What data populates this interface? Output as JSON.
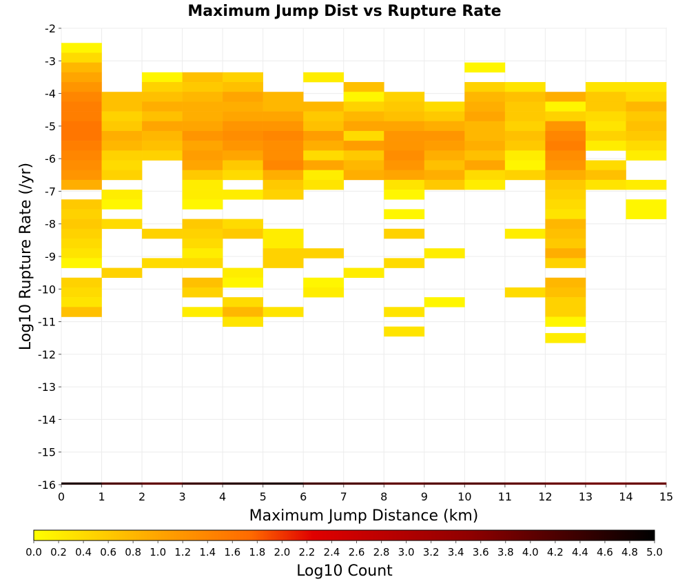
{
  "chart_data": {
    "type": "heatmap",
    "title": "Maximum Jump Dist vs Rupture Rate",
    "xlabel": "Maximum Jump Distance (km)",
    "ylabel": "Log10 Rupture Rate (/yr)",
    "colorbar_label": "Log10 Count",
    "xlim": [
      0,
      15
    ],
    "ylim": [
      -16,
      -2
    ],
    "x_ticks": [
      "0",
      "1",
      "2",
      "3",
      "4",
      "5",
      "6",
      "7",
      "8",
      "9",
      "10",
      "11",
      "12",
      "13",
      "14",
      "15"
    ],
    "y_ticks": [
      "-2",
      "-3",
      "-4",
      "-5",
      "-6",
      "-7",
      "-8",
      "-9",
      "-10",
      "-11",
      "-12",
      "-13",
      "-14",
      "-15",
      "-16"
    ],
    "colorbar_range": [
      0,
      5
    ],
    "colorbar_ticks": [
      "0.0",
      "0.2",
      "0.4",
      "0.6",
      "0.8",
      "1.0",
      "1.2",
      "1.4",
      "1.6",
      "1.8",
      "2.0",
      "2.2",
      "2.4",
      "2.6",
      "2.8",
      "3.0",
      "3.2",
      "3.4",
      "3.6",
      "3.8",
      "4.0",
      "4.2",
      "4.4",
      "4.6",
      "4.8",
      "5.0"
    ],
    "colormap": [
      "#ffff00",
      "#ffa500",
      "#ff6a00",
      "#e00000",
      "#900000",
      "#000000"
    ],
    "grid": true,
    "legend": "colorbar-bottom",
    "bin_width_x": 1,
    "bin_height_y": 0.3,
    "columns": [
      {
        "x": 0.5,
        "cells": [
          [
            -2.6,
            0.1
          ],
          [
            -2.9,
            0.4
          ],
          [
            -3.2,
            0.8
          ],
          [
            -3.5,
            1.0
          ],
          [
            -3.8,
            1.2
          ],
          [
            -4.1,
            1.4
          ],
          [
            -4.4,
            1.5
          ],
          [
            -4.7,
            1.5
          ],
          [
            -5.0,
            1.6
          ],
          [
            -5.3,
            1.6
          ],
          [
            -5.6,
            1.5
          ],
          [
            -5.9,
            1.4
          ],
          [
            -6.2,
            1.3
          ],
          [
            -6.5,
            1.2
          ],
          [
            -6.8,
            0.9
          ],
          [
            -7.4,
            0.6
          ],
          [
            -7.7,
            0.5
          ],
          [
            -8.0,
            0.6
          ],
          [
            -8.3,
            0.5
          ],
          [
            -8.6,
            0.4
          ],
          [
            -8.9,
            0.3
          ],
          [
            -9.2,
            0.1
          ],
          [
            -9.8,
            0.5
          ],
          [
            -10.1,
            0.4
          ],
          [
            -10.4,
            0.3
          ],
          [
            -10.7,
            0.7
          ]
        ]
      },
      {
        "x": 1.5,
        "cells": [
          [
            -4.1,
            0.7
          ],
          [
            -4.4,
            0.7
          ],
          [
            -4.7,
            0.5
          ],
          [
            -5.0,
            0.6
          ],
          [
            -5.3,
            0.9
          ],
          [
            -5.6,
            0.8
          ],
          [
            -5.9,
            0.5
          ],
          [
            -6.2,
            0.4
          ],
          [
            -6.5,
            0.5
          ],
          [
            -7.1,
            0.2
          ],
          [
            -7.4,
            0.1
          ],
          [
            -8.0,
            0.4
          ],
          [
            -9.5,
            0.5
          ]
        ]
      },
      {
        "x": 2.5,
        "cells": [
          [
            -3.5,
            0.1
          ],
          [
            -3.8,
            0.5
          ],
          [
            -4.1,
            0.7
          ],
          [
            -4.4,
            0.9
          ],
          [
            -4.7,
            0.7
          ],
          [
            -5.0,
            1.0
          ],
          [
            -5.3,
            0.8
          ],
          [
            -5.6,
            0.7
          ],
          [
            -5.9,
            0.5
          ],
          [
            -8.3,
            0.5
          ],
          [
            -9.2,
            0.4
          ]
        ]
      },
      {
        "x": 3.5,
        "cells": [
          [
            -3.5,
            0.7
          ],
          [
            -3.8,
            0.6
          ],
          [
            -4.1,
            0.8
          ],
          [
            -4.4,
            0.9
          ],
          [
            -4.7,
            0.9
          ],
          [
            -5.0,
            1.0
          ],
          [
            -5.3,
            1.2
          ],
          [
            -5.6,
            1.0
          ],
          [
            -5.9,
            1.1
          ],
          [
            -6.2,
            1.0
          ],
          [
            -6.5,
            0.6
          ],
          [
            -6.8,
            0.2
          ],
          [
            -7.1,
            0.2
          ],
          [
            -7.4,
            0.1
          ],
          [
            -8.0,
            0.6
          ],
          [
            -8.3,
            0.5
          ],
          [
            -8.6,
            0.4
          ],
          [
            -8.9,
            0.2
          ],
          [
            -9.2,
            0.4
          ],
          [
            -9.8,
            0.7
          ],
          [
            -10.1,
            0.5
          ],
          [
            -10.7,
            0.2
          ]
        ]
      },
      {
        "x": 4.5,
        "cells": [
          [
            -3.5,
            0.5
          ],
          [
            -3.8,
            0.7
          ],
          [
            -4.1,
            1.0
          ],
          [
            -4.4,
            0.9
          ],
          [
            -4.7,
            1.0
          ],
          [
            -5.0,
            1.2
          ],
          [
            -5.3,
            1.3
          ],
          [
            -5.6,
            1.2
          ],
          [
            -5.9,
            1.0
          ],
          [
            -6.2,
            0.6
          ],
          [
            -6.5,
            0.4
          ],
          [
            -7.1,
            0.2
          ],
          [
            -8.0,
            0.4
          ],
          [
            -8.3,
            0.6
          ],
          [
            -9.5,
            0.2
          ],
          [
            -9.8,
            0.1
          ],
          [
            -10.4,
            0.4
          ],
          [
            -10.7,
            0.8
          ],
          [
            -11.0,
            0.3
          ]
        ]
      },
      {
        "x": 5.5,
        "cells": [
          [
            -4.1,
            0.8
          ],
          [
            -4.4,
            0.8
          ],
          [
            -4.7,
            1.0
          ],
          [
            -5.0,
            1.2
          ],
          [
            -5.3,
            1.4
          ],
          [
            -5.6,
            1.3
          ],
          [
            -5.9,
            1.3
          ],
          [
            -6.2,
            1.4
          ],
          [
            -6.5,
            0.9
          ],
          [
            -6.8,
            0.6
          ],
          [
            -7.1,
            0.5
          ],
          [
            -8.3,
            0.2
          ],
          [
            -8.6,
            0.2
          ],
          [
            -8.9,
            0.5
          ],
          [
            -9.2,
            0.5
          ],
          [
            -10.7,
            0.3
          ]
        ]
      },
      {
        "x": 6.5,
        "cells": [
          [
            -3.5,
            0.2
          ],
          [
            -4.4,
            0.8
          ],
          [
            -4.7,
            0.6
          ],
          [
            -5.0,
            0.7
          ],
          [
            -5.3,
            1.1
          ],
          [
            -5.6,
            0.9
          ],
          [
            -5.9,
            0.4
          ],
          [
            -6.2,
            1.0
          ],
          [
            -6.5,
            0.2
          ],
          [
            -6.8,
            0.3
          ],
          [
            -8.9,
            0.5
          ],
          [
            -9.8,
            0.1
          ],
          [
            -10.1,
            0.2
          ]
        ]
      },
      {
        "x": 7.5,
        "cells": [
          [
            -3.8,
            0.7
          ],
          [
            -4.1,
            0.1
          ],
          [
            -4.4,
            0.5
          ],
          [
            -4.7,
            0.8
          ],
          [
            -5.0,
            1.0
          ],
          [
            -5.3,
            0.4
          ],
          [
            -5.6,
            1.1
          ],
          [
            -5.9,
            0.6
          ],
          [
            -6.2,
            0.8
          ],
          [
            -6.5,
            0.9
          ],
          [
            -9.5,
            0.2
          ]
        ]
      },
      {
        "x": 8.5,
        "cells": [
          [
            -4.1,
            0.5
          ],
          [
            -4.4,
            0.6
          ],
          [
            -4.7,
            0.7
          ],
          [
            -5.0,
            1.0
          ],
          [
            -5.3,
            1.2
          ],
          [
            -5.6,
            1.2
          ],
          [
            -5.9,
            1.3
          ],
          [
            -6.2,
            1.2
          ],
          [
            -6.5,
            1.0
          ],
          [
            -6.8,
            0.3
          ],
          [
            -7.1,
            0.1
          ],
          [
            -7.7,
            0.1
          ],
          [
            -8.3,
            0.5
          ],
          [
            -9.2,
            0.4
          ],
          [
            -10.7,
            0.3
          ],
          [
            -11.3,
            0.3
          ]
        ]
      },
      {
        "x": 9.5,
        "cells": [
          [
            -4.4,
            0.4
          ],
          [
            -4.7,
            0.6
          ],
          [
            -5.0,
            0.9
          ],
          [
            -5.3,
            1.2
          ],
          [
            -5.6,
            1.1
          ],
          [
            -5.9,
            0.9
          ],
          [
            -6.2,
            0.7
          ],
          [
            -6.5,
            0.9
          ],
          [
            -6.8,
            0.6
          ],
          [
            -8.9,
            0.2
          ],
          [
            -10.4,
            0.1
          ]
        ]
      },
      {
        "x": 10.5,
        "cells": [
          [
            -3.2,
            0.1
          ],
          [
            -3.8,
            0.5
          ],
          [
            -4.1,
            0.8
          ],
          [
            -4.4,
            0.9
          ],
          [
            -4.7,
            1.0
          ],
          [
            -5.0,
            0.8
          ],
          [
            -5.3,
            0.8
          ],
          [
            -5.6,
            0.9
          ],
          [
            -5.9,
            0.7
          ],
          [
            -6.2,
            1.0
          ],
          [
            -6.5,
            0.4
          ],
          [
            -6.8,
            0.2
          ]
        ]
      },
      {
        "x": 11.5,
        "cells": [
          [
            -3.8,
            0.3
          ],
          [
            -4.1,
            0.7
          ],
          [
            -4.4,
            0.6
          ],
          [
            -4.7,
            0.6
          ],
          [
            -5.0,
            0.5
          ],
          [
            -5.3,
            0.7
          ],
          [
            -5.6,
            0.6
          ],
          [
            -5.9,
            0.2
          ],
          [
            -6.2,
            0.1
          ],
          [
            -6.5,
            0.5
          ],
          [
            -8.3,
            0.2
          ],
          [
            -10.1,
            0.4
          ]
        ]
      },
      {
        "x": 12.5,
        "cells": [
          [
            -4.1,
            0.9
          ],
          [
            -4.4,
            0.1
          ],
          [
            -4.7,
            0.5
          ],
          [
            -5.0,
            1.2
          ],
          [
            -5.3,
            1.4
          ],
          [
            -5.6,
            1.5
          ],
          [
            -5.9,
            1.3
          ],
          [
            -6.2,
            1.2
          ],
          [
            -6.5,
            0.9
          ],
          [
            -6.8,
            0.6
          ],
          [
            -7.1,
            0.5
          ],
          [
            -7.4,
            0.4
          ],
          [
            -7.7,
            0.3
          ],
          [
            -8.0,
            0.8
          ],
          [
            -8.3,
            0.7
          ],
          [
            -8.6,
            0.6
          ],
          [
            -8.9,
            0.9
          ],
          [
            -9.2,
            0.5
          ],
          [
            -9.8,
            0.8
          ],
          [
            -10.1,
            0.7
          ],
          [
            -10.4,
            0.5
          ],
          [
            -10.7,
            0.5
          ],
          [
            -11.0,
            0.1
          ],
          [
            -11.5,
            0.2
          ]
        ]
      },
      {
        "x": 13.5,
        "cells": [
          [
            -3.8,
            0.3
          ],
          [
            -4.1,
            0.6
          ],
          [
            -4.4,
            0.6
          ],
          [
            -4.7,
            0.4
          ],
          [
            -5.0,
            0.3
          ],
          [
            -5.3,
            0.5
          ],
          [
            -5.6,
            0.2
          ],
          [
            -6.2,
            0.4
          ],
          [
            -6.5,
            0.7
          ],
          [
            -6.8,
            0.3
          ]
        ]
      },
      {
        "x": 14.5,
        "cells": [
          [
            -3.8,
            0.3
          ],
          [
            -4.1,
            0.4
          ],
          [
            -4.4,
            0.8
          ],
          [
            -4.7,
            0.6
          ],
          [
            -5.0,
            0.7
          ],
          [
            -5.3,
            0.6
          ],
          [
            -5.6,
            0.4
          ],
          [
            -5.9,
            0.2
          ],
          [
            -6.8,
            0.2
          ],
          [
            -7.4,
            0.1
          ],
          [
            -7.7,
            0.1
          ]
        ]
      }
    ],
    "bottom_row": {
      "y": -16.0,
      "values": [
        4.7,
        4.2,
        4.0,
        4.4,
        4.6,
        4.7,
        4.3,
        4.2,
        4.0,
        4.1,
        4.1,
        4.0,
        3.9,
        3.8,
        3.9
      ]
    }
  }
}
